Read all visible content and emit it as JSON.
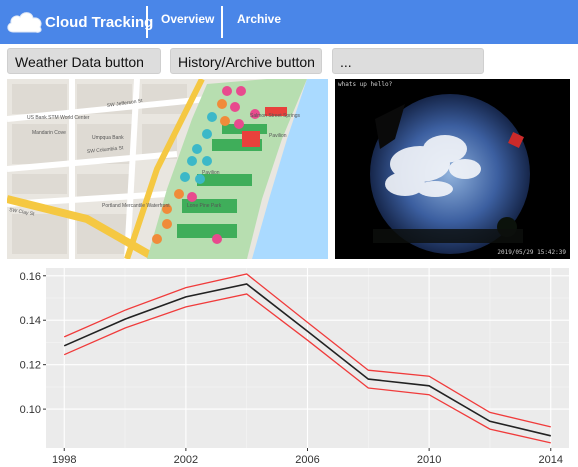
{
  "navbar": {
    "brand": "Cloud Tracking",
    "links": [
      {
        "label": "Overview"
      },
      {
        "label": "Archive"
      }
    ],
    "colors": {
      "background": "#4a86e8",
      "text": "#ffffff"
    }
  },
  "buttons": [
    {
      "label": "Weather Data button"
    },
    {
      "label": "History/Archive button"
    },
    {
      "label": "..."
    }
  ],
  "map": {
    "streets": [
      "SW Jefferson St",
      "SW Columbia St",
      "SW Clay St",
      "SW 2nd Ave",
      "SW 1st Ave",
      "SW 3rd Ave"
    ],
    "places": [
      "US Bank STM World Center",
      "Mandarin Cove",
      "Umpqua Bank",
      "Portland Mercantile Waterfront",
      "Pavilion",
      "Salmon Street Springs",
      "Lone Pine Park",
      "Pavilion"
    ]
  },
  "camera": {
    "caption": "whats up hello?",
    "timestamp": "2019/05/29 15:42:39"
  },
  "chart_data": {
    "type": "line",
    "title": "",
    "xlabel": "",
    "ylabel": "",
    "x": [
      1998,
      2000,
      2002,
      2004,
      2006,
      2008,
      2010,
      2012,
      2014
    ],
    "series": [
      {
        "values": [
          0.1285,
          0.1405,
          0.1505,
          0.1563,
          0.135,
          0.1135,
          0.1105,
          0.0945,
          0.088
        ],
        "color": "#222222"
      },
      {
        "values": [
          0.1325,
          0.1445,
          0.1547,
          0.1608,
          0.139,
          0.1175,
          0.1148,
          0.0985,
          0.092
        ],
        "color": "#f03b3b"
      },
      {
        "values": [
          0.1245,
          0.1365,
          0.146,
          0.1518,
          0.131,
          0.1095,
          0.1065,
          0.091,
          0.0848
        ],
        "color": "#f03b3b"
      }
    ],
    "xticks": [
      1998,
      2002,
      2006,
      2010,
      2014
    ],
    "yticks": [
      0.1,
      0.12,
      0.14,
      0.16
    ],
    "xlim": [
      1997.4,
      2014.6
    ],
    "ylim": [
      0.0825,
      0.1635
    ],
    "grid": true,
    "background": "#ebebeb"
  }
}
